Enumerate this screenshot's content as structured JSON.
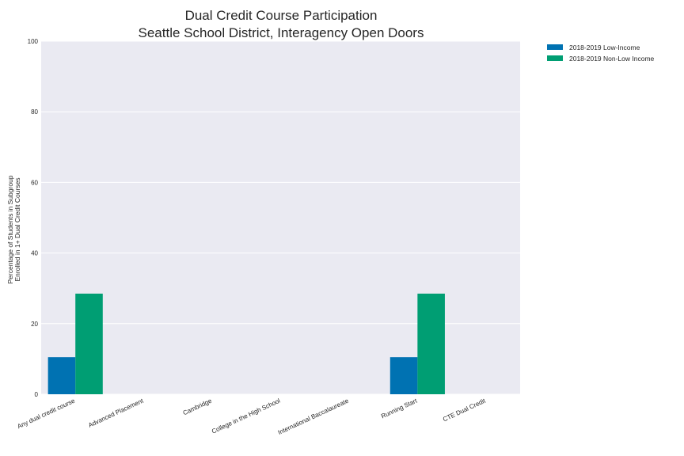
{
  "chart_data": {
    "type": "bar",
    "title": "Dual Credit Course Participation",
    "subtitle": "Seattle School District, Interagency Open Doors",
    "xlabel": "",
    "ylabel_lines": [
      "Percentage of Students in Subgroup",
      "Enrolled in 1+ Dual Credit Courses"
    ],
    "ylim": [
      0,
      100
    ],
    "yticks": [
      0,
      20,
      40,
      60,
      80,
      100
    ],
    "grid": true,
    "legend_position": "outside-top-right",
    "categories": [
      "Any dual credit course",
      "Advanced Placement",
      "Cambridge",
      "College in the High School",
      "International Baccalaureate",
      "Running Start",
      "CTE Dual Credit"
    ],
    "series": [
      {
        "name": "2018-2019 Low-Income",
        "color": "#0072B2",
        "values": [
          10.5,
          0,
          0,
          0,
          0,
          10.5,
          0
        ]
      },
      {
        "name": "2018-2019 Non-Low Income",
        "color": "#009E73",
        "values": [
          28.5,
          0,
          0,
          0,
          0,
          28.5,
          0
        ]
      }
    ],
    "plot_background": "#EAEAF2"
  }
}
